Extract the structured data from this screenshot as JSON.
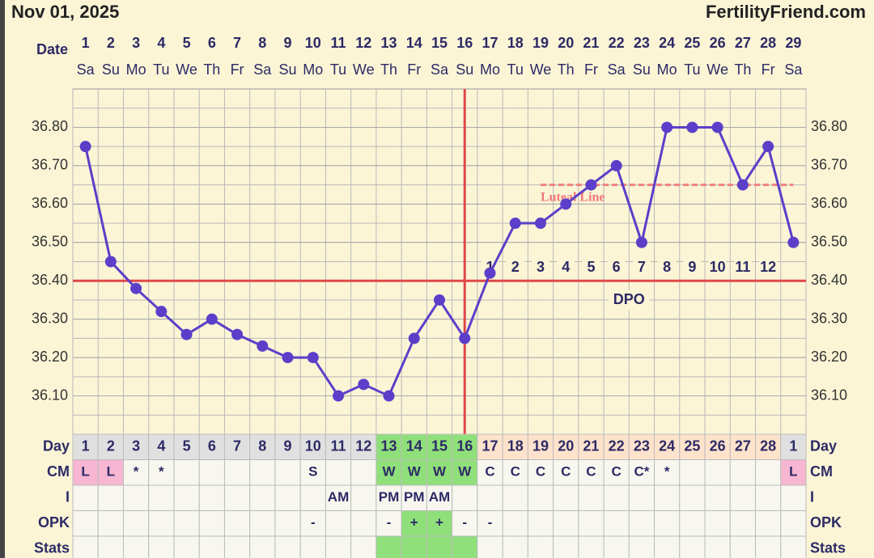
{
  "header": {
    "date": "Nov 01, 2025",
    "site": "FertilityFriend.com"
  },
  "chart_data": {
    "type": "line",
    "x_label": "Date",
    "categories": [
      1,
      2,
      3,
      4,
      5,
      6,
      7,
      8,
      9,
      10,
      11,
      12,
      13,
      14,
      15,
      16,
      17,
      18,
      19,
      20,
      21,
      22,
      23,
      24,
      25,
      26,
      27,
      28,
      29
    ],
    "weekdays": [
      "Sa",
      "Su",
      "Mo",
      "Tu",
      "We",
      "Th",
      "Fr",
      "Sa",
      "Su",
      "Mo",
      "Tu",
      "We",
      "Th",
      "Fr",
      "Sa",
      "Su",
      "Mo",
      "Tu",
      "We",
      "Th",
      "Fr",
      "Sa",
      "Su",
      "Mo",
      "Tu",
      "We",
      "Th",
      "Fr",
      "Sa"
    ],
    "values": [
      36.75,
      36.45,
      36.38,
      36.32,
      36.26,
      36.3,
      36.26,
      36.23,
      36.2,
      36.2,
      36.1,
      36.13,
      36.1,
      36.25,
      36.35,
      36.25,
      36.42,
      36.55,
      36.55,
      36.6,
      36.65,
      36.7,
      36.5,
      36.8,
      36.8,
      36.8,
      36.65,
      36.75,
      36.5
    ],
    "color": "#5b3fc9",
    "ylim": [
      36.0,
      36.9
    ],
    "yticks": [
      {
        "value": 36.1,
        "label": "36.10"
      },
      {
        "value": 36.2,
        "label": "36.20"
      },
      {
        "value": 36.3,
        "label": "36.30"
      },
      {
        "value": 36.4,
        "label": "36.40"
      },
      {
        "value": 36.5,
        "label": "36.50"
      },
      {
        "value": 36.6,
        "label": "36.60"
      },
      {
        "value": 36.7,
        "label": "36.70"
      },
      {
        "value": 36.8,
        "label": "36.80"
      }
    ],
    "grid": true,
    "coverline": 36.4,
    "ovulation_day": 16,
    "luteal_line": {
      "label": "Luteal Line",
      "value": 36.65,
      "start_day": 19
    },
    "dpo": {
      "label": "DPO",
      "start_day": 17,
      "values": [
        1,
        2,
        3,
        4,
        5,
        6,
        7,
        8,
        9,
        10,
        11,
        12
      ]
    }
  },
  "table": {
    "row_labels": [
      "Day",
      "CM",
      "I",
      "OPK",
      "Stats"
    ],
    "days": [
      1,
      2,
      3,
      4,
      5,
      6,
      7,
      8,
      9,
      10,
      11,
      12,
      13,
      14,
      15,
      16,
      17,
      18,
      19,
      20,
      21,
      22,
      23,
      24,
      25,
      26,
      27,
      28,
      1
    ],
    "day_colors": [
      "#e0e0e0",
      "#e0e0e0",
      "#e0e0e0",
      "#e0e0e0",
      "#e0e0e0",
      "#e0e0e0",
      "#e0e0e0",
      "#e0e0e0",
      "#e0e0e0",
      "#e0e0e0",
      "#e0e0e0",
      "#e0e0e0",
      "#8fe07a",
      "#8fe07a",
      "#8fe07a",
      "#8fe07a",
      "#fde2cc",
      "#fde2cc",
      "#fde2cc",
      "#fde2cc",
      "#fde2cc",
      "#fde2cc",
      "#fde2cc",
      "#fde2cc",
      "#fde2cc",
      "#fde2cc",
      "#fde2cc",
      "#fde2cc",
      "#e0e0e0"
    ],
    "cm": [
      "L",
      "L",
      "*",
      "*",
      null,
      null,
      null,
      null,
      null,
      "S",
      null,
      null,
      "W",
      "W",
      "W",
      "W",
      "C",
      "C",
      "C",
      "C",
      "C",
      "C",
      "C*",
      "*",
      null,
      null,
      null,
      null,
      "L"
    ],
    "cm_colors": [
      "#f7b6d2",
      "#f7b6d2",
      null,
      null,
      null,
      null,
      null,
      null,
      null,
      null,
      null,
      null,
      "#8fe07a",
      "#8fe07a",
      "#8fe07a",
      "#8fe07a",
      null,
      null,
      null,
      null,
      null,
      null,
      null,
      null,
      null,
      null,
      null,
      null,
      "#f7b6d2"
    ],
    "i": [
      null,
      null,
      null,
      null,
      null,
      null,
      null,
      null,
      null,
      null,
      "AM",
      null,
      "PM",
      "PM",
      "AM",
      null,
      null,
      null,
      null,
      null,
      null,
      null,
      null,
      null,
      null,
      null,
      null,
      null,
      null
    ],
    "opk": [
      null,
      null,
      null,
      null,
      null,
      null,
      null,
      null,
      null,
      "-",
      null,
      null,
      "-",
      "+",
      "+",
      "-",
      "-",
      null,
      null,
      null,
      null,
      null,
      null,
      null,
      null,
      null,
      null,
      null,
      null
    ],
    "opk_colors": [
      null,
      null,
      null,
      null,
      null,
      null,
      null,
      null,
      null,
      null,
      null,
      null,
      null,
      "#8fe07a",
      "#8fe07a",
      null,
      null,
      null,
      null,
      null,
      null,
      null,
      null,
      null,
      null,
      null,
      null,
      null,
      null
    ],
    "stats_colors": [
      null,
      null,
      null,
      null,
      null,
      null,
      null,
      null,
      null,
      null,
      null,
      null,
      "#8fe07a",
      "#8fe07a",
      "#8fe07a",
      "#8fe07a",
      null,
      null,
      null,
      null,
      null,
      null,
      null,
      null,
      null,
      null,
      null,
      null,
      null
    ]
  }
}
